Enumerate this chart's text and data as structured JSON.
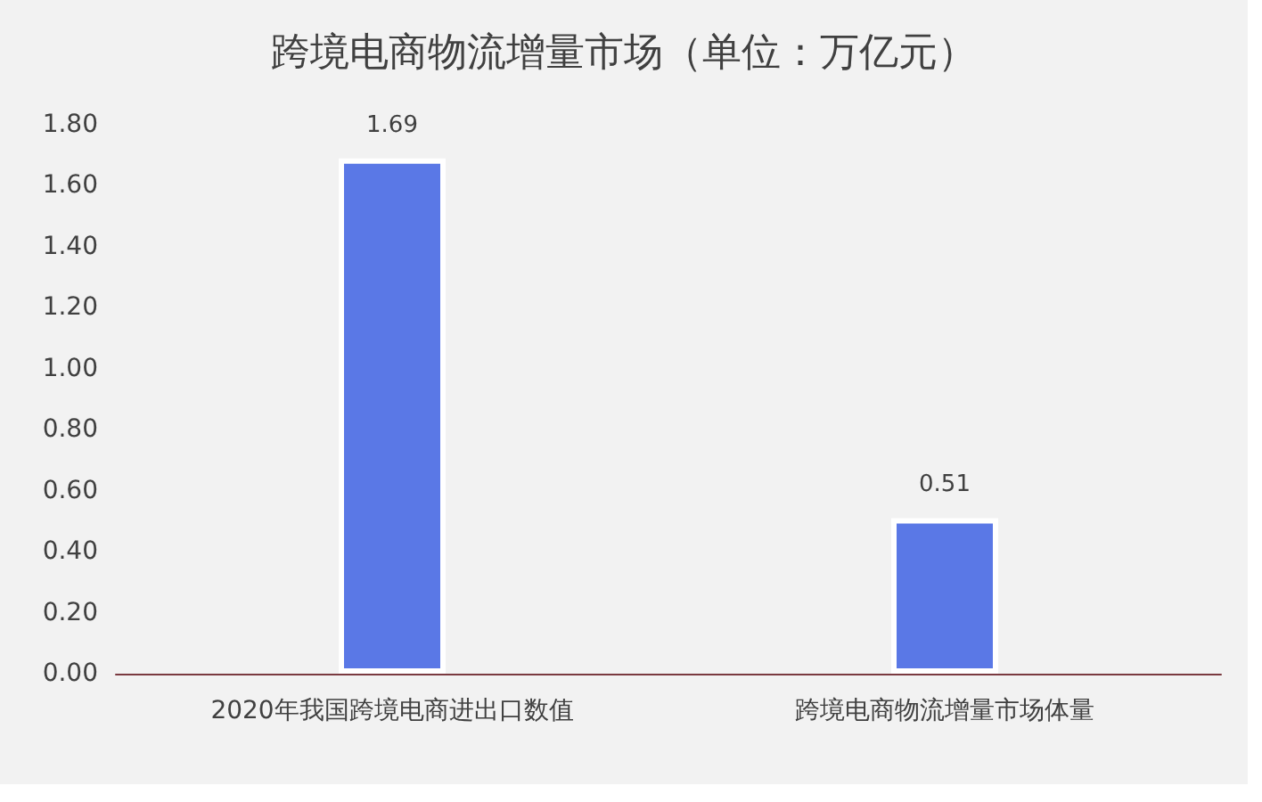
{
  "chart_data": {
    "type": "bar",
    "title": "跨境电商物流增量市场（单位：万亿元）",
    "categories": [
      "2020年我国跨境电商进出口数值",
      "跨境电商物流增量市场体量"
    ],
    "values": [
      1.69,
      0.51
    ],
    "color": "#5a78e6",
    "ylim": [
      0,
      1.8
    ],
    "yticks": [
      {
        "value": 0,
        "label": "0.00"
      },
      {
        "value": 0.2,
        "label": "0.20"
      },
      {
        "value": 0.4,
        "label": "0.40"
      },
      {
        "value": 0.6,
        "label": "0.60"
      },
      {
        "value": 0.8,
        "label": "0.80"
      },
      {
        "value": 1,
        "label": "1.00"
      },
      {
        "value": 1.2,
        "label": "1.20"
      },
      {
        "value": 1.4,
        "label": "1.40"
      },
      {
        "value": 1.6,
        "label": "1.60"
      },
      {
        "value": 1.8,
        "label": "1.80"
      }
    ],
    "data_labels": true
  }
}
